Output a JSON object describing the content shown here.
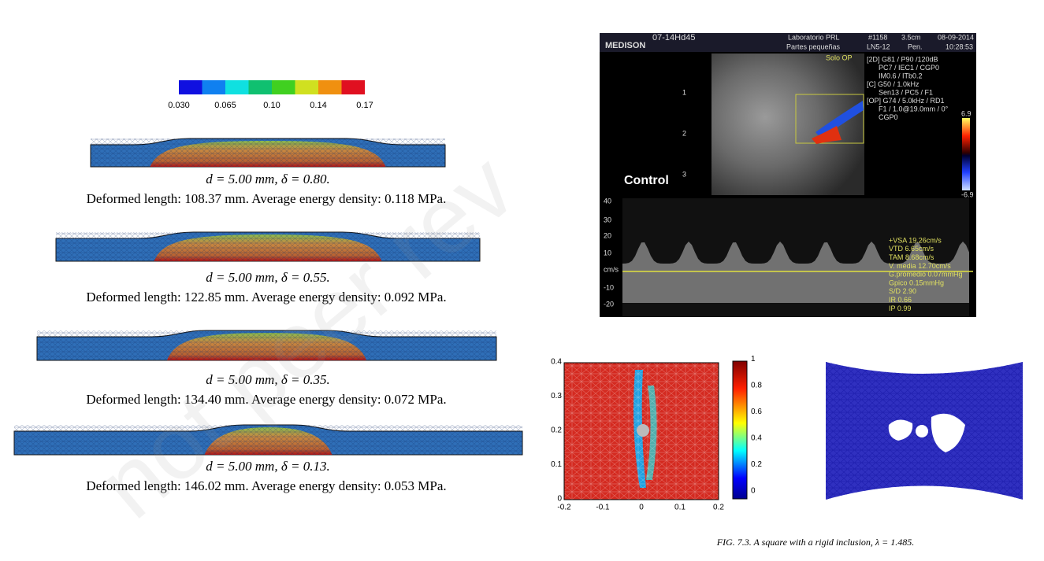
{
  "watermark": "not peer rev",
  "deformation_figure": {
    "colorbar_labels": [
      "0.030",
      "0.065",
      "0.10",
      "0.14",
      "0.17"
    ],
    "panels": [
      {
        "params": "d = 5.00 mm, δ = 0.80.",
        "summary": "Deformed length: 108.37 mm. Average energy density: 0.118 MPa."
      },
      {
        "params": "d = 5.00 mm, δ = 0.55.",
        "summary": "Deformed length: 122.85 mm. Average energy density: 0.092 MPa."
      },
      {
        "params": "d = 5.00 mm, δ = 0.35.",
        "summary": "Deformed length: 134.40 mm. Average energy density: 0.072 MPa."
      },
      {
        "params": "d = 5.00 mm, δ = 0.13.",
        "summary": "Deformed length: 146.02 mm. Average energy density: 0.053 MPa."
      }
    ]
  },
  "ultrasound": {
    "header": {
      "id": "07-14Hd45",
      "brand": "MEDISON",
      "lab": "Laboratorio PRL",
      "preset": "Partes pequeñas",
      "number": "#1158",
      "depth": "3.5cm",
      "date": "08-09-2014",
      "probe": "LN5-12",
      "mode": "Pen.",
      "time": "10:28:53"
    },
    "mode_tag": "Solo OP",
    "settings": [
      "[2D] G81 / P90 /120dB",
      "PC7 / IEC1 / CGP0",
      "IM0.6 / ITb0.2",
      "[C] G50 / 1.0kHz",
      "Sen13 / PC5 / F1",
      "[OP] G74 / 5.0kHz / RD1",
      "F1 / 1.0@19.0mm / 0°",
      "CGP0"
    ],
    "label": "Control",
    "depth_marks": [
      "1",
      "2",
      "3"
    ],
    "color_scale": [
      "6.9",
      "-6.9"
    ],
    "velocity_axis": [
      "40",
      "30",
      "20",
      "10",
      "cm/s",
      "-10",
      "-20"
    ],
    "measurements": [
      "+VSA  19.26cm/s",
      "VTD  6.65cm/s",
      "TAM  8.68cm/s",
      "V. media 12.70cm/s",
      "G.promedio 0.07mmHg",
      "Gpico  0.15mmHg",
      "S/D   2.90",
      "IR    0.66",
      "IP    0.99"
    ]
  },
  "mesh_figure": {
    "x_ticks": [
      "-0.2",
      "-0.1",
      "0",
      "0.1",
      "0.2"
    ],
    "y_ticks": [
      "0",
      "0.1",
      "0.2",
      "0.3",
      "0.4"
    ],
    "colorbar_ticks": [
      "0",
      "0.2",
      "0.4",
      "0.6",
      "0.8",
      "1"
    ],
    "caption": "FIG. 7.3. A square with a rigid inclusion, λ = 1.485."
  }
}
